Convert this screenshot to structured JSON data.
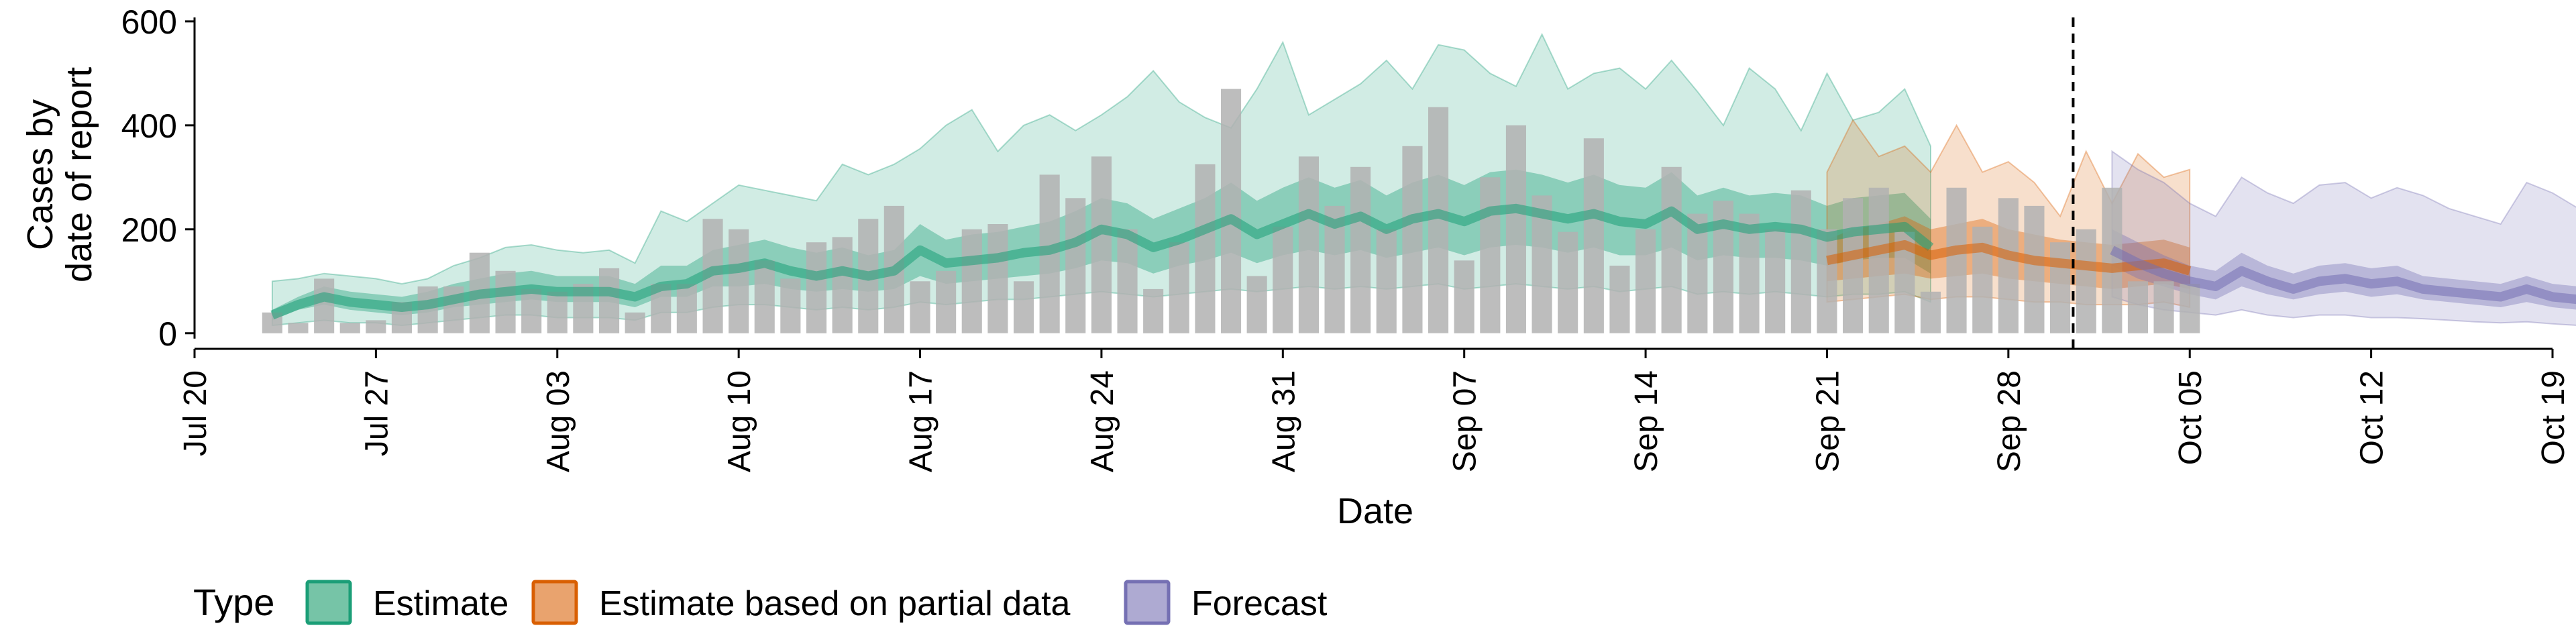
{
  "chart_data": {
    "type": "bar",
    "xlabel": "Date",
    "ylabel_lines": [
      "Cases by",
      "date of report"
    ],
    "y_ticks": [
      0,
      200,
      400,
      600
    ],
    "y_tick_labels": [
      "0",
      "200",
      "400",
      "600"
    ],
    "ylim": [
      -30,
      605
    ],
    "x_range": [
      "2020-07-20",
      "2020-10-19"
    ],
    "x_ticks": [
      "2020-07-20",
      "2020-07-27",
      "2020-08-03",
      "2020-08-10",
      "2020-08-17",
      "2020-08-24",
      "2020-08-31",
      "2020-09-07",
      "2020-09-14",
      "2020-09-21",
      "2020-09-28",
      "2020-10-05",
      "2020-10-12",
      "2020-10-19"
    ],
    "x_tick_labels": [
      "Jul 20",
      "Jul 27",
      "Aug 03",
      "Aug 10",
      "Aug 17",
      "Aug 24",
      "Aug 31",
      "Sep 07",
      "Sep 14",
      "Sep 21",
      "Sep 28",
      "Oct 05",
      "Oct 12",
      "Oct 19"
    ],
    "vline_date": "2020-10-01",
    "legend": {
      "title": "Type",
      "placement": "bottom",
      "items": [
        {
          "label": "Estimate",
          "fill": "#76c4a7",
          "stroke": "#1b9e77"
        },
        {
          "label": "Estimate based on partial data",
          "fill": "#e9a36e",
          "stroke": "#d95f02"
        },
        {
          "label": "Forecast",
          "fill": "#aeaad2",
          "stroke": "#7570b3"
        }
      ]
    },
    "colors": {
      "bars": "#b2b2b2",
      "estimate": "#1b9e77",
      "partial": "#d95f02",
      "forecast": "#7570b3"
    },
    "bars": {
      "start_date": "2020-07-23",
      "values": [
        40,
        20,
        105,
        20,
        25,
        60,
        90,
        90,
        155,
        120,
        85,
        80,
        95,
        125,
        40,
        95,
        95,
        220,
        200,
        140,
        105,
        175,
        185,
        220,
        245,
        100,
        120,
        200,
        210,
        100,
        305,
        260,
        340,
        200,
        85,
        175,
        325,
        470,
        110,
        205,
        340,
        245,
        320,
        200,
        360,
        435,
        140,
        300,
        400,
        265,
        195,
        375,
        130,
        200,
        320,
        230,
        255,
        230,
        200,
        275,
        200,
        260,
        280,
        195,
        80,
        280,
        205,
        260,
        245,
        175,
        200,
        280,
        100,
        100,
        95
      ]
    },
    "series": [
      {
        "name": "Estimate",
        "start_date": "2020-07-23",
        "median": [
          35,
          55,
          70,
          60,
          55,
          50,
          55,
          65,
          75,
          80,
          85,
          80,
          80,
          80,
          70,
          90,
          95,
          120,
          125,
          135,
          120,
          110,
          120,
          110,
          120,
          160,
          135,
          140,
          145,
          155,
          160,
          175,
          200,
          190,
          165,
          180,
          200,
          220,
          190,
          210,
          230,
          210,
          225,
          200,
          220,
          230,
          215,
          235,
          240,
          230,
          220,
          230,
          215,
          210,
          235,
          200,
          210,
          200,
          205,
          200,
          185,
          195,
          200,
          205,
          165
        ],
        "inner": [
          [
            25,
            45
          ],
          [
            45,
            70
          ],
          [
            55,
            90
          ],
          [
            45,
            80
          ],
          [
            40,
            75
          ],
          [
            35,
            70
          ],
          [
            40,
            80
          ],
          [
            50,
            95
          ],
          [
            55,
            105
          ],
          [
            60,
            115
          ],
          [
            65,
            120
          ],
          [
            60,
            110
          ],
          [
            60,
            110
          ],
          [
            60,
            110
          ],
          [
            50,
            95
          ],
          [
            70,
            130
          ],
          [
            70,
            130
          ],
          [
            90,
            160
          ],
          [
            90,
            170
          ],
          [
            95,
            180
          ],
          [
            85,
            165
          ],
          [
            80,
            155
          ],
          [
            85,
            165
          ],
          [
            80,
            150
          ],
          [
            85,
            160
          ],
          [
            110,
            210
          ],
          [
            95,
            180
          ],
          [
            100,
            190
          ],
          [
            105,
            195
          ],
          [
            110,
            205
          ],
          [
            115,
            215
          ],
          [
            125,
            235
          ],
          [
            140,
            260
          ],
          [
            135,
            250
          ],
          [
            115,
            220
          ],
          [
            130,
            240
          ],
          [
            140,
            260
          ],
          [
            155,
            290
          ],
          [
            135,
            255
          ],
          [
            150,
            280
          ],
          [
            160,
            300
          ],
          [
            150,
            280
          ],
          [
            160,
            295
          ],
          [
            145,
            265
          ],
          [
            155,
            290
          ],
          [
            165,
            305
          ],
          [
            150,
            285
          ],
          [
            165,
            310
          ],
          [
            170,
            315
          ],
          [
            165,
            305
          ],
          [
            155,
            290
          ],
          [
            165,
            305
          ],
          [
            150,
            285
          ],
          [
            150,
            280
          ],
          [
            165,
            310
          ],
          [
            140,
            265
          ],
          [
            150,
            280
          ],
          [
            145,
            265
          ],
          [
            145,
            270
          ],
          [
            140,
            265
          ],
          [
            130,
            245
          ],
          [
            140,
            260
          ],
          [
            145,
            265
          ],
          [
            145,
            270
          ],
          [
            115,
            220
          ]
        ],
        "outer": [
          [
            15,
            100
          ],
          [
            20,
            105
          ],
          [
            25,
            115
          ],
          [
            20,
            110
          ],
          [
            20,
            105
          ],
          [
            15,
            95
          ],
          [
            20,
            105
          ],
          [
            25,
            130
          ],
          [
            30,
            145
          ],
          [
            35,
            165
          ],
          [
            35,
            170
          ],
          [
            30,
            160
          ],
          [
            30,
            155
          ],
          [
            30,
            160
          ],
          [
            25,
            135
          ],
          [
            40,
            235
          ],
          [
            40,
            215
          ],
          [
            50,
            250
          ],
          [
            55,
            285
          ],
          [
            55,
            275
          ],
          [
            50,
            265
          ],
          [
            45,
            255
          ],
          [
            50,
            325
          ],
          [
            45,
            305
          ],
          [
            50,
            325
          ],
          [
            60,
            355
          ],
          [
            55,
            400
          ],
          [
            60,
            430
          ],
          [
            65,
            350
          ],
          [
            65,
            400
          ],
          [
            70,
            420
          ],
          [
            75,
            390
          ],
          [
            80,
            420
          ],
          [
            75,
            455
          ],
          [
            70,
            505
          ],
          [
            75,
            445
          ],
          [
            80,
            415
          ],
          [
            85,
            395
          ],
          [
            80,
            470
          ],
          [
            85,
            560
          ],
          [
            90,
            420
          ],
          [
            85,
            450
          ],
          [
            90,
            480
          ],
          [
            85,
            525
          ],
          [
            90,
            470
          ],
          [
            95,
            555
          ],
          [
            85,
            545
          ],
          [
            90,
            500
          ],
          [
            95,
            475
          ],
          [
            90,
            575
          ],
          [
            85,
            470
          ],
          [
            90,
            500
          ],
          [
            80,
            510
          ],
          [
            85,
            470
          ],
          [
            90,
            525
          ],
          [
            75,
            465
          ],
          [
            80,
            400
          ],
          [
            75,
            510
          ],
          [
            80,
            470
          ],
          [
            75,
            390
          ],
          [
            70,
            500
          ],
          [
            75,
            410
          ],
          [
            75,
            425
          ],
          [
            80,
            470
          ],
          [
            60,
            360
          ]
        ]
      },
      {
        "name": "Estimate based on partial data",
        "start_date": "2020-09-21",
        "median": [
          140,
          150,
          160,
          170,
          150,
          160,
          165,
          150,
          140,
          135,
          130,
          125,
          130,
          135,
          120
        ],
        "inner": [
          [
            100,
            180
          ],
          [
            105,
            200
          ],
          [
            110,
            210
          ],
          [
            115,
            225
          ],
          [
            105,
            200
          ],
          [
            110,
            210
          ],
          [
            115,
            220
          ],
          [
            105,
            200
          ],
          [
            100,
            190
          ],
          [
            95,
            180
          ],
          [
            90,
            175
          ],
          [
            85,
            170
          ],
          [
            90,
            175
          ],
          [
            95,
            180
          ],
          [
            85,
            165
          ]
        ],
        "outer": [
          [
            60,
            310
          ],
          [
            65,
            410
          ],
          [
            70,
            340
          ],
          [
            75,
            360
          ],
          [
            65,
            310
          ],
          [
            70,
            400
          ],
          [
            70,
            310
          ],
          [
            65,
            330
          ],
          [
            60,
            290
          ],
          [
            60,
            225
          ],
          [
            55,
            350
          ],
          [
            55,
            250
          ],
          [
            55,
            345
          ],
          [
            60,
            300
          ],
          [
            50,
            315
          ]
        ]
      },
      {
        "name": "Forecast",
        "start_date": "2020-10-02",
        "median": [
          160,
          135,
          115,
          100,
          90,
          120,
          100,
          85,
          100,
          105,
          95,
          100,
          85,
          80,
          75,
          70,
          85,
          70,
          65,
          70,
          65,
          65
        ],
        "inner": [
          [
            130,
            200
          ],
          [
            105,
            175
          ],
          [
            90,
            150
          ],
          [
            75,
            130
          ],
          [
            65,
            120
          ],
          [
            90,
            155
          ],
          [
            75,
            130
          ],
          [
            65,
            115
          ],
          [
            75,
            130
          ],
          [
            80,
            135
          ],
          [
            70,
            125
          ],
          [
            75,
            130
          ],
          [
            65,
            110
          ],
          [
            60,
            105
          ],
          [
            55,
            100
          ],
          [
            50,
            95
          ],
          [
            60,
            110
          ],
          [
            50,
            95
          ],
          [
            45,
            90
          ],
          [
            50,
            95
          ],
          [
            45,
            85
          ],
          [
            45,
            90
          ]
        ],
        "outer": [
          [
            70,
            350
          ],
          [
            55,
            315
          ],
          [
            45,
            290
          ],
          [
            40,
            250
          ],
          [
            35,
            225
          ],
          [
            45,
            300
          ],
          [
            35,
            270
          ],
          [
            30,
            250
          ],
          [
            35,
            285
          ],
          [
            35,
            290
          ],
          [
            30,
            260
          ],
          [
            30,
            280
          ],
          [
            28,
            265
          ],
          [
            25,
            240
          ],
          [
            22,
            225
          ],
          [
            20,
            210
          ],
          [
            22,
            290
          ],
          [
            18,
            270
          ],
          [
            15,
            240
          ],
          [
            16,
            250
          ],
          [
            12,
            260
          ],
          [
            10,
            255
          ]
        ]
      }
    ]
  }
}
